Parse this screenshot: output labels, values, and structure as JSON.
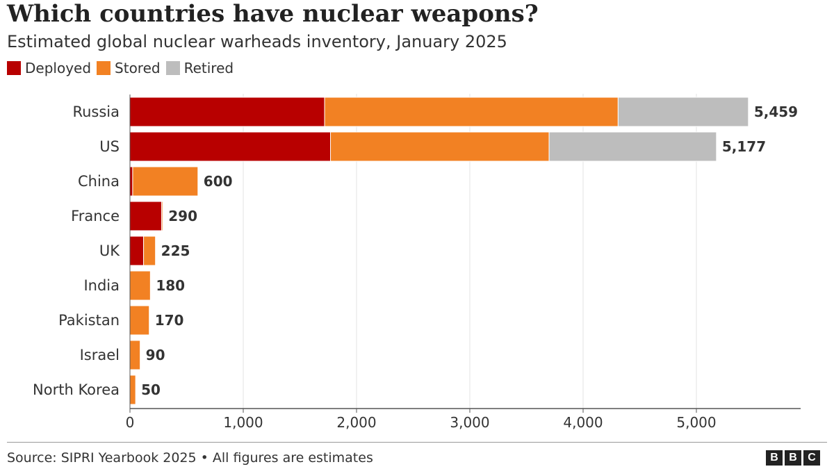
{
  "header": {
    "title": "Which countries have nuclear weapons?",
    "subtitle": "Estimated global nuclear warheads inventory, January 2025"
  },
  "legend": [
    {
      "label": "Deployed",
      "color": "#b80000"
    },
    {
      "label": "Stored",
      "color": "#f28123"
    },
    {
      "label": "Retired",
      "color": "#bdbdbd"
    }
  ],
  "chart_data": {
    "type": "bar",
    "orientation": "horizontal",
    "stacked": true,
    "categories": [
      "Russia",
      "US",
      "China",
      "France",
      "UK",
      "India",
      "Pakistan",
      "Israel",
      "North Korea"
    ],
    "series": [
      {
        "name": "Deployed",
        "color": "#b80000",
        "values": [
          1718,
          1770,
          24,
          280,
          120,
          0,
          0,
          0,
          0
        ]
      },
      {
        "name": "Stored",
        "color": "#f28123",
        "values": [
          2591,
          1930,
          576,
          10,
          105,
          180,
          170,
          90,
          50
        ]
      },
      {
        "name": "Retired",
        "color": "#bdbdbd",
        "values": [
          1150,
          1477,
          0,
          0,
          0,
          0,
          0,
          0,
          0
        ]
      }
    ],
    "totals": [
      "5,459",
      "5,177",
      "600",
      "290",
      "225",
      "180",
      "170",
      "90",
      "50"
    ],
    "xlim": [
      0,
      5500
    ],
    "xticks": [
      0,
      1000,
      2000,
      3000,
      4000,
      5000
    ],
    "xtick_labels": [
      "0",
      "1,000",
      "2,000",
      "3,000",
      "4,000",
      "5,000"
    ],
    "grid": "vertical",
    "legend_position": "top-left"
  },
  "footer": {
    "source": "Source: SIPRI Yearbook 2025 • All figures are estimates",
    "logo": [
      "B",
      "B",
      "C"
    ]
  }
}
